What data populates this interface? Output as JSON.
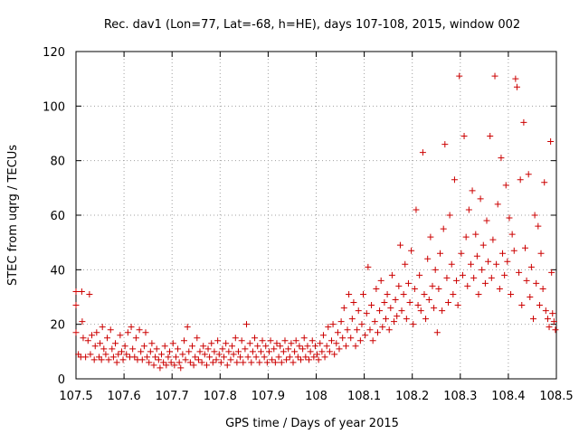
{
  "chart_data": {
    "type": "scatter",
    "title": "Rec. dav1 (Lon=77, Lat=-68, h=HE), days 107-108, 2015, window 002",
    "xlabel": "GPS time / Days of year 2015",
    "ylabel": "STEC from uqrg / TECUs",
    "xlim": [
      107.5,
      108.5
    ],
    "ylim": [
      0,
      120
    ],
    "x_ticks": [
      107.5,
      107.6,
      107.7,
      107.8,
      107.9,
      108,
      108.1,
      108.2,
      108.3,
      108.4,
      108.5
    ],
    "x_tick_labels": [
      "107.5",
      "107.6",
      "107.7",
      "107.8",
      "107.9",
      "108",
      "108.1",
      "108.2",
      "108.3",
      "108.4",
      "108.5"
    ],
    "y_ticks": [
      0,
      20,
      40,
      60,
      80,
      100,
      120
    ],
    "y_tick_labels": [
      "0",
      "20",
      "40",
      "60",
      "80",
      "100",
      "120"
    ],
    "grid": true,
    "marker": "+",
    "color": "#cc0000",
    "series": [
      {
        "name": "STEC",
        "points": [
          [
            107.5,
            32
          ],
          [
            107.5,
            27
          ],
          [
            107.5,
            17
          ],
          [
            107.505,
            9
          ],
          [
            107.51,
            8
          ],
          [
            107.512,
            32
          ],
          [
            107.513,
            21
          ],
          [
            107.515,
            15
          ],
          [
            107.52,
            8
          ],
          [
            107.525,
            14
          ],
          [
            107.528,
            31
          ],
          [
            107.53,
            9
          ],
          [
            107.533,
            16
          ],
          [
            107.538,
            7
          ],
          [
            107.54,
            12
          ],
          [
            107.543,
            17
          ],
          [
            107.548,
            8
          ],
          [
            107.55,
            13
          ],
          [
            107.553,
            7
          ],
          [
            107.555,
            19
          ],
          [
            107.558,
            11
          ],
          [
            107.562,
            9
          ],
          [
            107.565,
            15
          ],
          [
            107.568,
            7
          ],
          [
            107.572,
            18
          ],
          [
            107.575,
            11
          ],
          [
            107.578,
            8
          ],
          [
            107.582,
            13
          ],
          [
            107.585,
            6
          ],
          [
            107.588,
            9
          ],
          [
            107.592,
            16
          ],
          [
            107.595,
            10
          ],
          [
            107.598,
            7
          ],
          [
            107.602,
            12
          ],
          [
            107.605,
            9
          ],
          [
            107.608,
            17
          ],
          [
            107.612,
            8
          ],
          [
            107.615,
            19
          ],
          [
            107.618,
            11
          ],
          [
            107.622,
            8
          ],
          [
            107.625,
            15
          ],
          [
            107.628,
            7
          ],
          [
            107.632,
            18
          ],
          [
            107.635,
            10
          ],
          [
            107.638,
            7
          ],
          [
            107.642,
            12
          ],
          [
            107.645,
            17
          ],
          [
            107.648,
            8
          ],
          [
            107.652,
            6
          ],
          [
            107.655,
            10
          ],
          [
            107.658,
            13
          ],
          [
            107.662,
            5
          ],
          [
            107.665,
            8
          ],
          [
            107.668,
            11
          ],
          [
            107.672,
            7
          ],
          [
            107.675,
            4
          ],
          [
            107.678,
            9
          ],
          [
            107.682,
            6
          ],
          [
            107.685,
            12
          ],
          [
            107.688,
            5
          ],
          [
            107.692,
            8
          ],
          [
            107.695,
            10
          ],
          [
            107.698,
            6
          ],
          [
            107.702,
            13
          ],
          [
            107.705,
            5
          ],
          [
            107.708,
            8
          ],
          [
            107.712,
            11
          ],
          [
            107.715,
            6
          ],
          [
            107.718,
            4
          ],
          [
            107.722,
            9
          ],
          [
            107.725,
            14
          ],
          [
            107.728,
            7
          ],
          [
            107.732,
            19
          ],
          [
            107.735,
            10
          ],
          [
            107.738,
            6
          ],
          [
            107.742,
            12
          ],
          [
            107.745,
            5
          ],
          [
            107.748,
            8
          ],
          [
            107.752,
            15
          ],
          [
            107.755,
            7
          ],
          [
            107.758,
            10
          ],
          [
            107.762,
            6
          ],
          [
            107.765,
            12
          ],
          [
            107.768,
            9
          ],
          [
            107.772,
            5
          ],
          [
            107.775,
            11
          ],
          [
            107.778,
            8
          ],
          [
            107.782,
            13
          ],
          [
            107.785,
            6
          ],
          [
            107.788,
            10
          ],
          [
            107.792,
            7
          ],
          [
            107.795,
            14
          ],
          [
            107.798,
            9
          ],
          [
            107.802,
            6
          ],
          [
            107.805,
            11
          ],
          [
            107.808,
            8
          ],
          [
            107.812,
            13
          ],
          [
            107.815,
            5
          ],
          [
            107.818,
            10
          ],
          [
            107.822,
            7
          ],
          [
            107.825,
            12
          ],
          [
            107.828,
            9
          ],
          [
            107.832,
            15
          ],
          [
            107.835,
            6
          ],
          [
            107.838,
            10
          ],
          [
            107.842,
            8
          ],
          [
            107.845,
            14
          ],
          [
            107.848,
            6
          ],
          [
            107.852,
            11
          ],
          [
            107.855,
            20
          ],
          [
            107.858,
            8
          ],
          [
            107.862,
            13
          ],
          [
            107.865,
            6
          ],
          [
            107.868,
            10
          ],
          [
            107.872,
            15
          ],
          [
            107.875,
            8
          ],
          [
            107.878,
            12
          ],
          [
            107.882,
            6
          ],
          [
            107.885,
            10
          ],
          [
            107.888,
            14
          ],
          [
            107.892,
            8
          ],
          [
            107.895,
            12
          ],
          [
            107.898,
            6
          ],
          [
            107.902,
            10
          ],
          [
            107.905,
            14
          ],
          [
            107.908,
            7
          ],
          [
            107.912,
            11
          ],
          [
            107.915,
            6
          ],
          [
            107.918,
            13
          ],
          [
            107.922,
            8
          ],
          [
            107.925,
            12
          ],
          [
            107.928,
            6
          ],
          [
            107.932,
            10
          ],
          [
            107.935,
            14
          ],
          [
            107.938,
            7
          ],
          [
            107.942,
            11
          ],
          [
            107.945,
            8
          ],
          [
            107.948,
            13
          ],
          [
            107.952,
            6
          ],
          [
            107.955,
            10
          ],
          [
            107.958,
            14
          ],
          [
            107.962,
            8
          ],
          [
            107.965,
            12
          ],
          [
            107.968,
            7
          ],
          [
            107.972,
            11
          ],
          [
            107.975,
            15
          ],
          [
            107.978,
            8
          ],
          [
            107.982,
            12
          ],
          [
            107.985,
            7
          ],
          [
            107.988,
            10
          ],
          [
            107.992,
            14
          ],
          [
            107.995,
            8
          ],
          [
            107.998,
            12
          ],
          [
            108.002,
            9
          ],
          [
            108.005,
            7
          ],
          [
            108.008,
            13
          ],
          [
            108.012,
            10
          ],
          [
            108.015,
            16
          ],
          [
            108.018,
            8
          ],
          [
            108.022,
            12
          ],
          [
            108.025,
            19
          ],
          [
            108.028,
            10
          ],
          [
            108.032,
            14
          ],
          [
            108.035,
            20
          ],
          [
            108.038,
            9
          ],
          [
            108.042,
            13
          ],
          [
            108.045,
            17
          ],
          [
            108.048,
            11
          ],
          [
            108.052,
            21
          ],
          [
            108.055,
            15
          ],
          [
            108.058,
            26
          ],
          [
            108.062,
            12
          ],
          [
            108.065,
            18
          ],
          [
            108.068,
            31
          ],
          [
            108.072,
            15
          ],
          [
            108.075,
            22
          ],
          [
            108.078,
            28
          ],
          [
            108.082,
            12
          ],
          [
            108.085,
            18
          ],
          [
            108.088,
            25
          ],
          [
            108.092,
            14
          ],
          [
            108.095,
            20
          ],
          [
            108.098,
            31
          ],
          [
            108.102,
            16
          ],
          [
            108.105,
            24
          ],
          [
            108.108,
            41
          ],
          [
            108.112,
            18
          ],
          [
            108.115,
            27
          ],
          [
            108.118,
            14
          ],
          [
            108.122,
            21
          ],
          [
            108.125,
            33
          ],
          [
            108.128,
            17
          ],
          [
            108.132,
            25
          ],
          [
            108.135,
            36
          ],
          [
            108.138,
            19
          ],
          [
            108.142,
            28
          ],
          [
            108.145,
            22
          ],
          [
            108.148,
            31
          ],
          [
            108.152,
            18
          ],
          [
            108.155,
            26
          ],
          [
            108.158,
            38
          ],
          [
            108.162,
            21
          ],
          [
            108.165,
            29
          ],
          [
            108.168,
            23
          ],
          [
            108.172,
            34
          ],
          [
            108.175,
            49
          ],
          [
            108.178,
            25
          ],
          [
            108.182,
            31
          ],
          [
            108.185,
            42
          ],
          [
            108.188,
            22
          ],
          [
            108.192,
            35
          ],
          [
            108.195,
            28
          ],
          [
            108.198,
            47
          ],
          [
            108.202,
            20
          ],
          [
            108.205,
            33
          ],
          [
            108.208,
            62
          ],
          [
            108.212,
            27
          ],
          [
            108.215,
            38
          ],
          [
            108.218,
            25
          ],
          [
            108.222,
            83
          ],
          [
            108.225,
            31
          ],
          [
            108.228,
            22
          ],
          [
            108.232,
            44
          ],
          [
            108.235,
            29
          ],
          [
            108.238,
            52
          ],
          [
            108.242,
            34
          ],
          [
            108.245,
            26
          ],
          [
            108.248,
            40
          ],
          [
            108.252,
            17
          ],
          [
            108.255,
            33
          ],
          [
            108.258,
            46
          ],
          [
            108.262,
            25
          ],
          [
            108.265,
            55
          ],
          [
            108.268,
            86
          ],
          [
            108.272,
            37
          ],
          [
            108.275,
            28
          ],
          [
            108.278,
            60
          ],
          [
            108.282,
            42
          ],
          [
            108.285,
            31
          ],
          [
            108.288,
            73
          ],
          [
            108.292,
            36
          ],
          [
            108.295,
            27
          ],
          [
            108.298,
            111
          ],
          [
            108.302,
            46
          ],
          [
            108.305,
            38
          ],
          [
            108.308,
            89
          ],
          [
            108.312,
            52
          ],
          [
            108.315,
            34
          ],
          [
            108.318,
            62
          ],
          [
            108.322,
            42
          ],
          [
            108.325,
            69
          ],
          [
            108.328,
            37
          ],
          [
            108.332,
            53
          ],
          [
            108.335,
            45
          ],
          [
            108.338,
            31
          ],
          [
            108.342,
            66
          ],
          [
            108.345,
            40
          ],
          [
            108.348,
            49
          ],
          [
            108.352,
            35
          ],
          [
            108.355,
            58
          ],
          [
            108.358,
            43
          ],
          [
            108.362,
            89
          ],
          [
            108.365,
            37
          ],
          [
            108.368,
            51
          ],
          [
            108.372,
            111
          ],
          [
            108.375,
            42
          ],
          [
            108.378,
            64
          ],
          [
            108.382,
            33
          ],
          [
            108.385,
            81
          ],
          [
            108.388,
            46
          ],
          [
            108.392,
            38
          ],
          [
            108.395,
            71
          ],
          [
            108.398,
            43
          ],
          [
            108.402,
            59
          ],
          [
            108.405,
            31
          ],
          [
            108.408,
            53
          ],
          [
            108.412,
            47
          ],
          [
            108.415,
            110
          ],
          [
            108.418,
            107
          ],
          [
            108.422,
            39
          ],
          [
            108.425,
            73
          ],
          [
            108.428,
            27
          ],
          [
            108.432,
            94
          ],
          [
            108.435,
            48
          ],
          [
            108.438,
            36
          ],
          [
            108.442,
            75
          ],
          [
            108.445,
            30
          ],
          [
            108.448,
            41
          ],
          [
            108.452,
            22
          ],
          [
            108.455,
            60
          ],
          [
            108.458,
            35
          ],
          [
            108.462,
            56
          ],
          [
            108.465,
            27
          ],
          [
            108.468,
            46
          ],
          [
            108.472,
            33
          ],
          [
            108.475,
            72
          ],
          [
            108.478,
            25
          ],
          [
            108.482,
            22
          ],
          [
            108.485,
            19
          ],
          [
            108.488,
            87
          ],
          [
            108.49,
            39
          ],
          [
            108.492,
            24
          ],
          [
            108.495,
            21
          ],
          [
            108.498,
            18
          ]
        ]
      }
    ]
  }
}
